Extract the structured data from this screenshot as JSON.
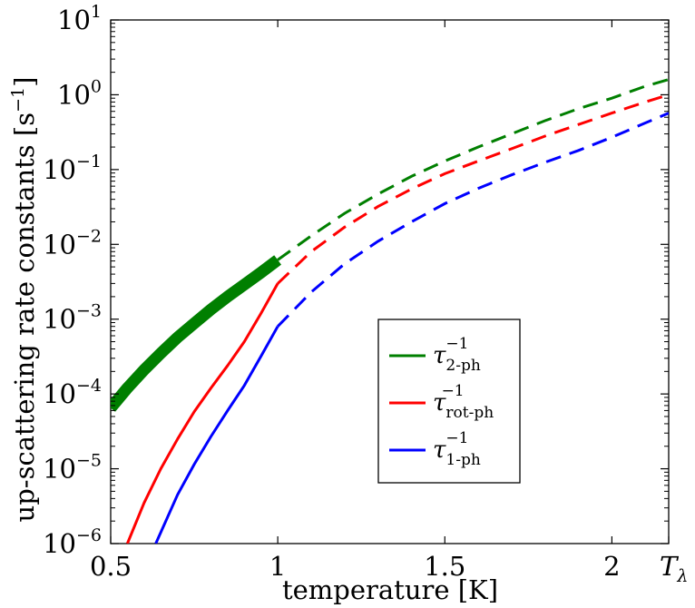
{
  "chart_data": {
    "type": "line",
    "xlabel": "temperature [K]",
    "ylabel": "up-scattering rate constants [s",
    "ylabel_exp": "−1",
    "ylabel_close": "]",
    "x_scale": "linear",
    "y_scale": "log",
    "xlim": [
      0.5,
      2.17
    ],
    "ylim": [
      1e-06,
      10
    ],
    "x_ticks": [
      {
        "value": 0.5,
        "label": "0.5"
      },
      {
        "value": 1,
        "label": "1"
      },
      {
        "value": 1.5,
        "label": "1.5"
      },
      {
        "value": 2,
        "label": "2"
      }
    ],
    "x_extra_tick": {
      "value": 2.17,
      "label_main": "T",
      "label_sub": "λ"
    },
    "y_ticks": [
      {
        "value": 10.0,
        "base": "10",
        "exp": "1"
      },
      {
        "value": 1.0,
        "base": "10",
        "exp": "0"
      },
      {
        "value": 0.1,
        "base": "10",
        "exp": "−1"
      },
      {
        "value": 0.01,
        "base": "10",
        "exp": "−2"
      },
      {
        "value": 0.001,
        "base": "10",
        "exp": "−3"
      },
      {
        "value": 0.0001,
        "base": "10",
        "exp": "−4"
      },
      {
        "value": 1e-05,
        "base": "10",
        "exp": "−5"
      },
      {
        "value": 1e-06,
        "base": "10",
        "exp": "−6"
      }
    ],
    "grid": false,
    "legend_position": "center-right",
    "series": [
      {
        "name": "τ2-ph−1",
        "legend_main": "τ",
        "legend_sub": "2-ph",
        "legend_sup": "−1",
        "color": "#007f00",
        "solid_x": [
          0.5,
          0.55,
          0.6,
          0.65,
          0.7,
          0.75,
          0.8,
          0.85,
          0.9,
          0.95,
          1.0
        ],
        "solid_y": [
          6.5e-05,
          0.00012,
          0.00021,
          0.00035,
          0.00057,
          0.00088,
          0.00135,
          0.002,
          0.0029,
          0.0042,
          0.0062
        ],
        "solid_style": "thick",
        "dashed_x": [
          1.0,
          1.1,
          1.2,
          1.3,
          1.4,
          1.5,
          1.6,
          1.7,
          1.8,
          1.9,
          2.0,
          2.1,
          2.17
        ],
        "dashed_y": [
          0.0062,
          0.013,
          0.026,
          0.047,
          0.081,
          0.13,
          0.2,
          0.3,
          0.45,
          0.65,
          0.9,
          1.3,
          1.6
        ]
      },
      {
        "name": "τrot-ph−1",
        "legend_main": "τ",
        "legend_sub": "rot-ph",
        "legend_sup": "−1",
        "color": "#ff0000",
        "solid_x": [
          0.55,
          0.6,
          0.65,
          0.7,
          0.75,
          0.8,
          0.85,
          0.9,
          0.95,
          1.0
        ],
        "solid_y": [
          1e-06,
          3.5e-06,
          1e-05,
          2.5e-05,
          5.8e-05,
          0.00012,
          0.00024,
          0.0005,
          0.0012,
          0.003
        ],
        "solid_style": "thin",
        "dashed_x": [
          1.0,
          1.1,
          1.2,
          1.3,
          1.4,
          1.5,
          1.6,
          1.7,
          1.8,
          1.9,
          2.0,
          2.1,
          2.17
        ],
        "dashed_y": [
          0.003,
          0.008,
          0.017,
          0.032,
          0.055,
          0.088,
          0.13,
          0.19,
          0.28,
          0.4,
          0.57,
          0.8,
          1.0
        ]
      },
      {
        "name": "τ1-ph−1",
        "legend_main": "τ",
        "legend_sub": "1-ph",
        "legend_sup": "−1",
        "color": "#0000ff",
        "solid_x": [
          0.635,
          0.7,
          0.75,
          0.8,
          0.85,
          0.9,
          0.95,
          1.0
        ],
        "solid_y": [
          1e-06,
          4.5e-06,
          1.15e-05,
          2.7e-05,
          6e-05,
          0.00013,
          0.00032,
          0.0008
        ],
        "solid_style": "thin",
        "dashed_x": [
          1.0,
          1.1,
          1.2,
          1.3,
          1.4,
          1.5,
          1.6,
          1.7,
          1.8,
          1.9,
          2.0,
          2.1,
          2.17
        ],
        "dashed_y": [
          0.0008,
          0.0023,
          0.0055,
          0.011,
          0.02,
          0.035,
          0.056,
          0.085,
          0.125,
          0.18,
          0.27,
          0.42,
          0.57
        ]
      }
    ]
  }
}
